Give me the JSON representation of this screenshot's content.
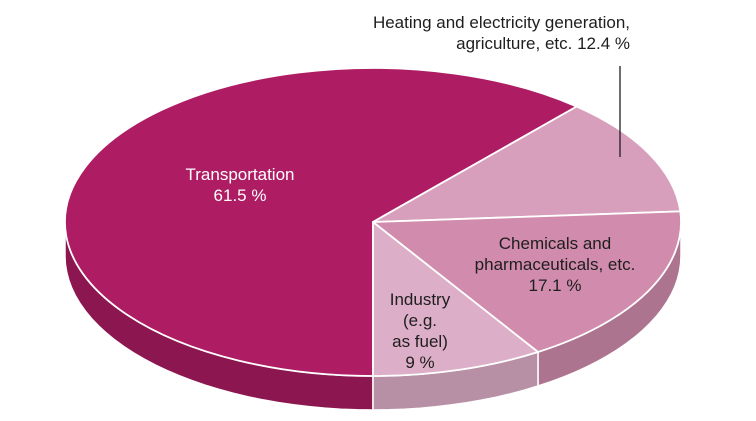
{
  "chart_data": {
    "type": "pie",
    "slices": [
      {
        "label_lines": [
          "Transportation",
          "61.5 %"
        ],
        "value": 61.5,
        "color": "#ae1d64",
        "side_color": "#8c1650"
      },
      {
        "label_lines": [
          "Heating and electricity generation,",
          "agriculture, etc. 12.4 %"
        ],
        "value": 12.4,
        "color": "#d79fbb",
        "side_color": "#b07f98"
      },
      {
        "label_lines": [
          "Chemicals and",
          "pharmaceuticals, etc.",
          "17.1 %"
        ],
        "value": 17.1,
        "color": "#d18bad",
        "side_color": "#ad7490"
      },
      {
        "label_lines": [
          "Industry",
          "(e.g.",
          "as fuel)",
          "9 %"
        ],
        "value": 9,
        "color": "#ddaec7",
        "side_color": "#b890a5"
      }
    ]
  }
}
